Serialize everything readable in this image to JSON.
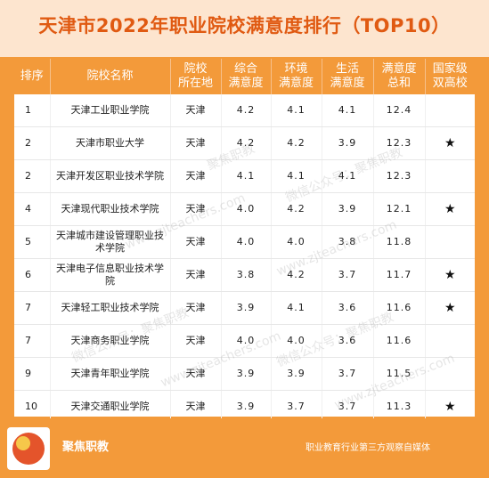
{
  "title": "天津市2022年职业院校满意度排行（TOP10）",
  "headers": {
    "rank": "排序",
    "name": "院校名称",
    "location_line1": "院校",
    "location_line2": "所在地",
    "overall_line1": "综合",
    "overall_line2": "满意度",
    "env_line1": "环境",
    "env_line2": "满意度",
    "life_line1": "生活",
    "life_line2": "满意度",
    "total_line1": "满意度",
    "total_line2": "总和",
    "national_line1": "国家级",
    "national_line2": "双高校"
  },
  "rows": [
    {
      "rank": "1",
      "name": "天津工业职业学院",
      "location": "天津",
      "overall": "4.2",
      "environment": "4.1",
      "life": "4.1",
      "total": "12.4",
      "national": ""
    },
    {
      "rank": "2",
      "name": "天津市职业大学",
      "location": "天津",
      "overall": "4.2",
      "environment": "4.2",
      "life": "3.9",
      "total": "12.3",
      "national": "★"
    },
    {
      "rank": "2",
      "name": "天津开发区职业技术学院",
      "location": "天津",
      "overall": "4.1",
      "environment": "4.1",
      "life": "4.1",
      "total": "12.3",
      "national": ""
    },
    {
      "rank": "4",
      "name": "天津现代职业技术学院",
      "location": "天津",
      "overall": "4.0",
      "environment": "4.2",
      "life": "3.9",
      "total": "12.1",
      "national": "★"
    },
    {
      "rank": "5",
      "name": "天津城市建设管理职业技术学院",
      "location": "天津",
      "overall": "4.0",
      "environment": "4.0",
      "life": "3.8",
      "total": "11.8",
      "national": ""
    },
    {
      "rank": "6",
      "name": "天津电子信息职业技术学院",
      "location": "天津",
      "overall": "3.8",
      "environment": "4.2",
      "life": "3.7",
      "total": "11.7",
      "national": "★"
    },
    {
      "rank": "7",
      "name": "天津轻工职业技术学院",
      "location": "天津",
      "overall": "3.9",
      "environment": "4.1",
      "life": "3.6",
      "total": "11.6",
      "national": "★"
    },
    {
      "rank": "7",
      "name": "天津商务职业学院",
      "location": "天津",
      "overall": "4.0",
      "environment": "4.0",
      "life": "3.6",
      "total": "11.6",
      "national": ""
    },
    {
      "rank": "9",
      "name": "天津青年职业学院",
      "location": "天津",
      "overall": "3.9",
      "environment": "3.9",
      "life": "3.7",
      "total": "11.5",
      "national": ""
    },
    {
      "rank": "10",
      "name": "天津交通职业学院",
      "location": "天津",
      "overall": "3.9",
      "environment": "3.7",
      "life": "3.7",
      "total": "11.3",
      "national": "★"
    }
  ],
  "footer": {
    "brand": "聚焦职教",
    "slogan": "职业教育行业第三方观察自媒体"
  },
  "watermarks": [
    "聚焦职教",
    "微信公众号：聚焦职教",
    "www.zjteachers.com"
  ],
  "colors": {
    "accent": "#f39a3a",
    "title_text": "#e05a12",
    "title_bg": "#fde5cf"
  }
}
